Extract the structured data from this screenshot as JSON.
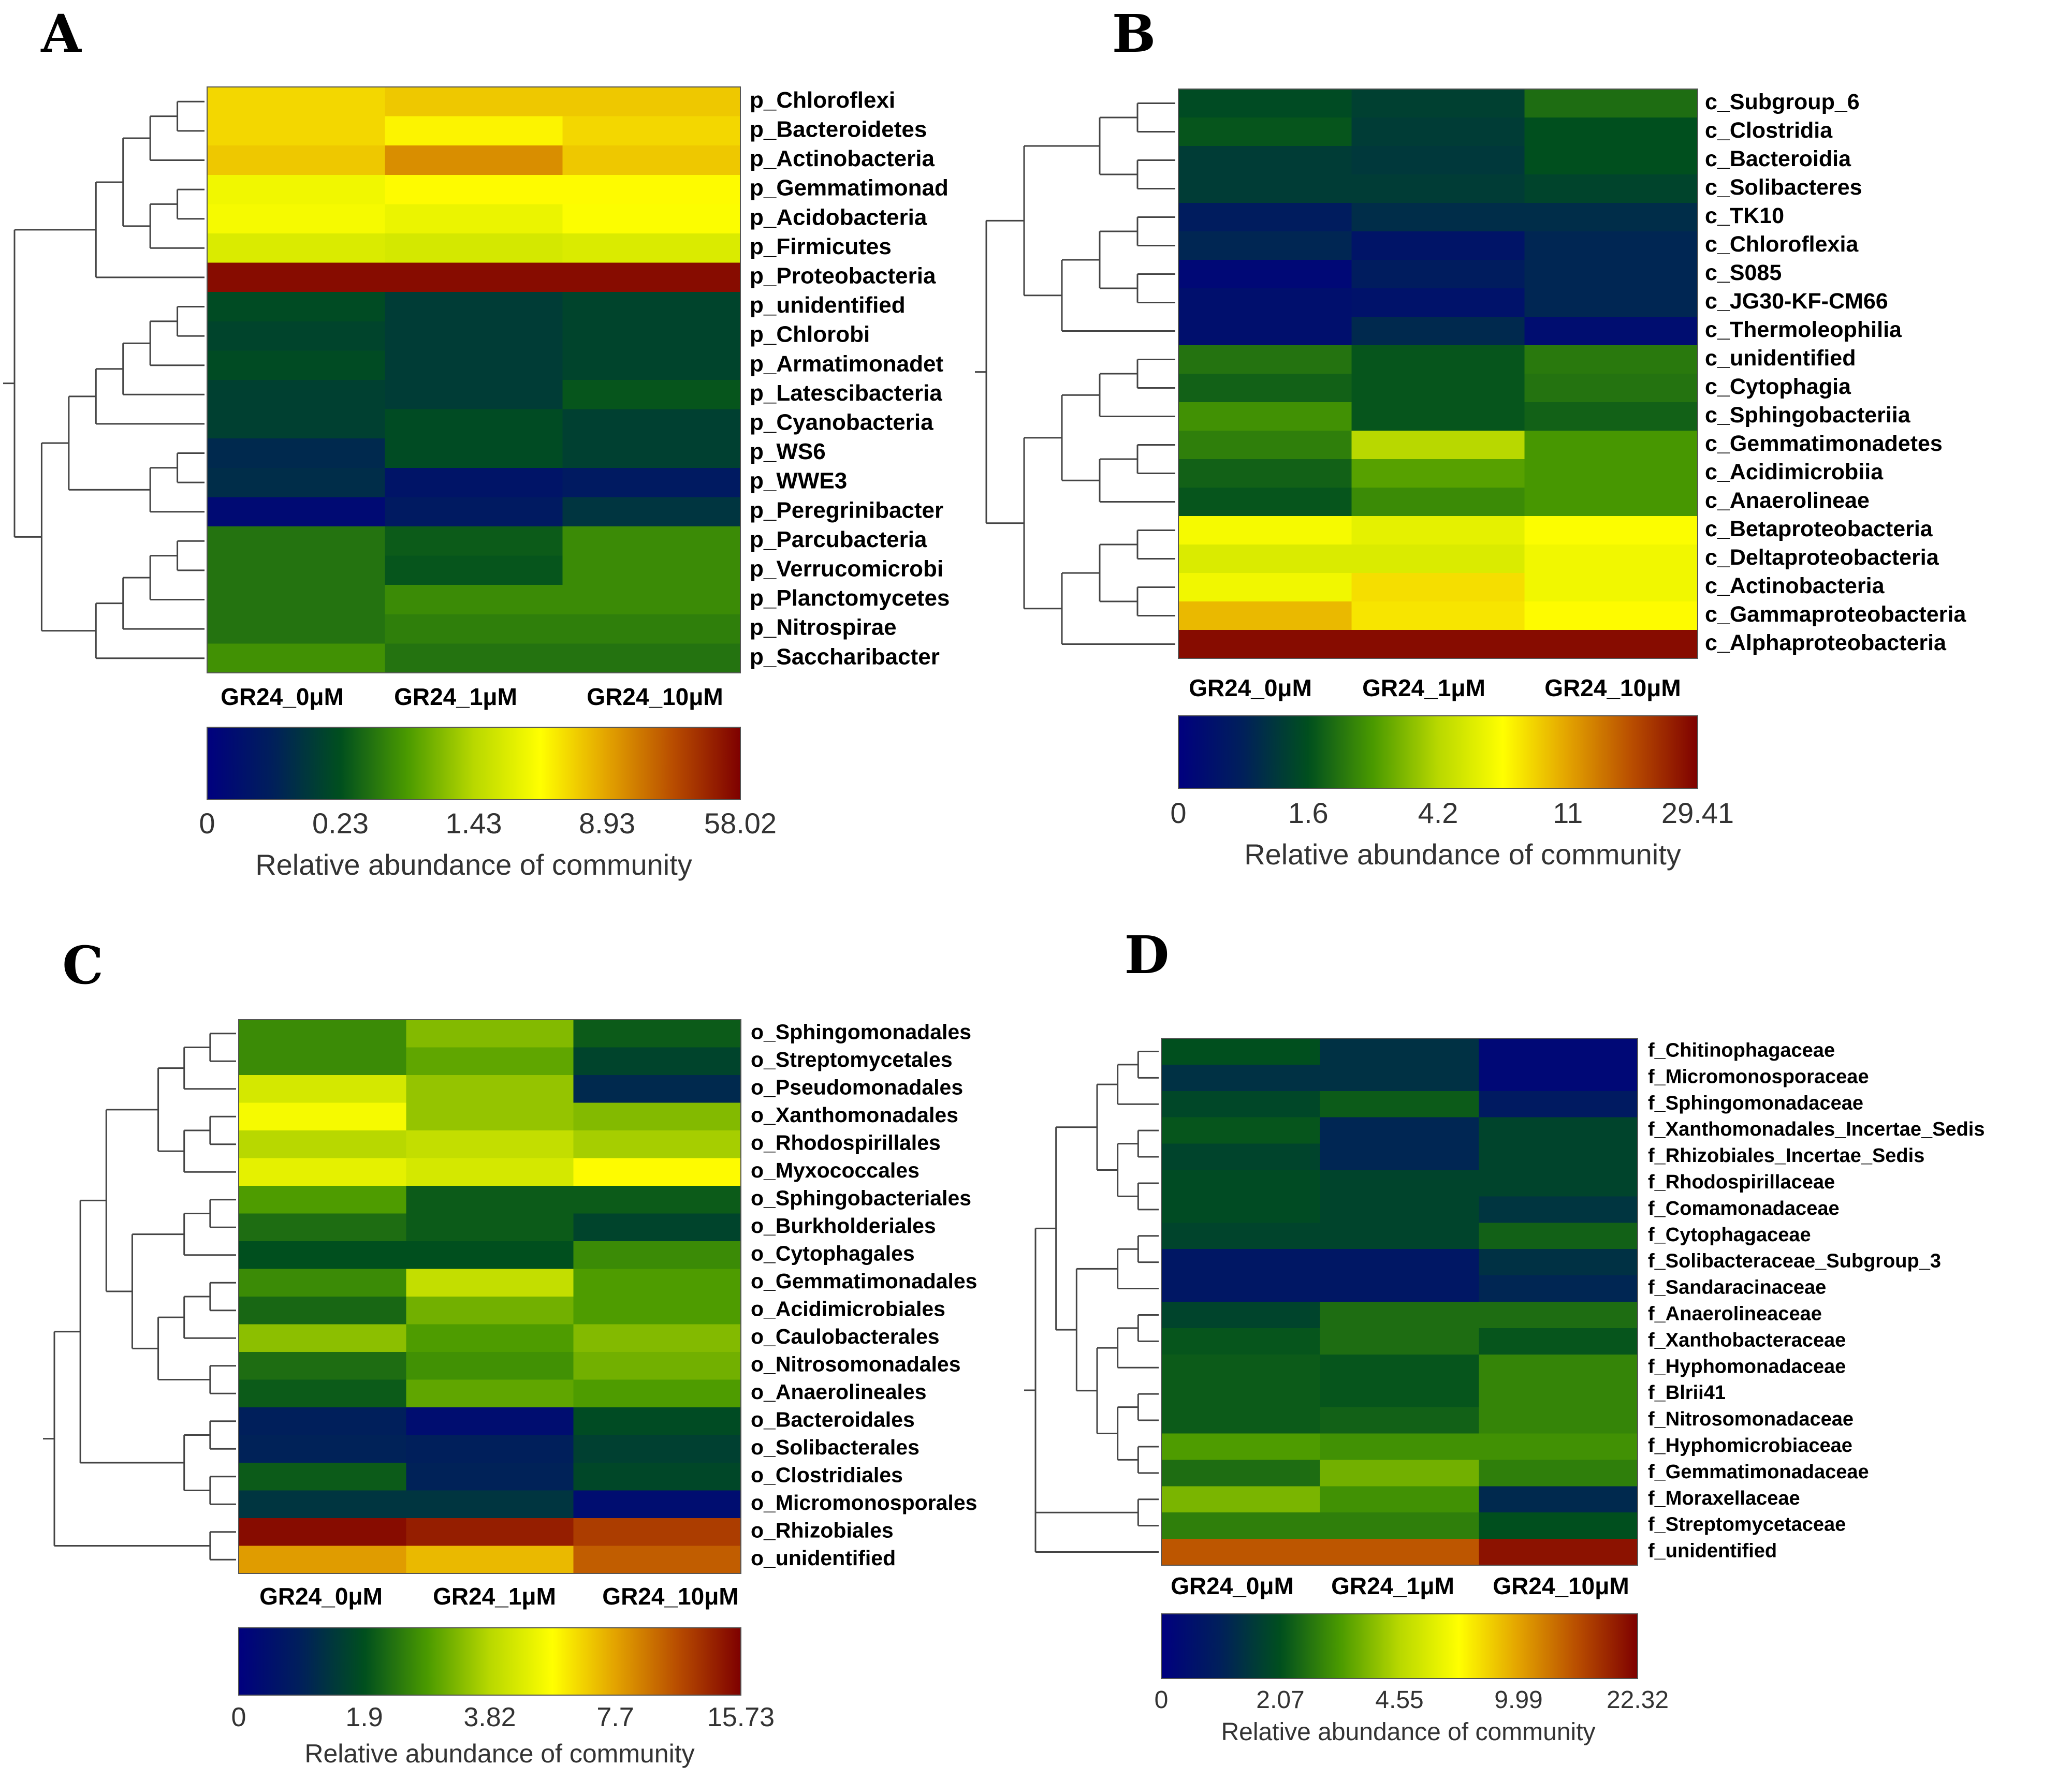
{
  "palette": [
    "#00007f",
    "#00205a",
    "#004f1e",
    "#4a9a00",
    "#b8d800",
    "#ffff00",
    "#e3a300",
    "#b84c00",
    "#7e0000"
  ],
  "chart_data": [
    {
      "type": "heatmap",
      "panel": "A",
      "columns": [
        "GR24_0μM",
        "GR24_1μM",
        "GR24_10μM"
      ],
      "rows": [
        "p_Chloroflexi",
        "p_Bacteroidetes",
        "p_Actinobacteria",
        "p_Gemmatimonad",
        "p_Acidobacteria",
        "p_Firmicutes",
        "p_Proteobacteria",
        "p_unidentified",
        "p_Chlorobi",
        "p_Armatimonadet",
        "p_Latescibacteria",
        "p_Cyanobacteria",
        "p_WS6",
        "p_WWE3",
        "p_Peregrinibacter",
        "p_Parcubacteria",
        "p_Verrucomicrobi",
        "p_Planctomycetes",
        "p_Nitrospirae",
        "p_Saccharibacter"
      ],
      "values": [
        [
          0.68,
          0.7,
          0.7
        ],
        [
          0.68,
          0.64,
          0.68
        ],
        [
          0.7,
          0.78,
          0.7
        ],
        [
          0.6,
          0.63,
          0.63
        ],
        [
          0.61,
          0.59,
          0.62
        ],
        [
          0.56,
          0.55,
          0.56
        ],
        [
          0.98,
          0.98,
          0.98
        ],
        [
          0.24,
          0.2,
          0.22
        ],
        [
          0.22,
          0.2,
          0.22
        ],
        [
          0.24,
          0.2,
          0.22
        ],
        [
          0.21,
          0.2,
          0.26
        ],
        [
          0.21,
          0.24,
          0.21
        ],
        [
          0.15,
          0.24,
          0.21
        ],
        [
          0.16,
          0.08,
          0.1
        ],
        [
          0.04,
          0.1,
          0.18
        ],
        [
          0.31,
          0.27,
          0.35
        ],
        [
          0.31,
          0.26,
          0.35
        ],
        [
          0.31,
          0.35,
          0.35
        ],
        [
          0.31,
          0.33,
          0.33
        ],
        [
          0.36,
          0.31,
          0.31
        ]
      ],
      "colorbar": {
        "ticks": [
          "0",
          "0.23",
          "1.43",
          "8.93",
          "58.02"
        ],
        "title": "Relative abundance of community"
      }
    },
    {
      "type": "heatmap",
      "panel": "B",
      "columns": [
        "GR24_0μM",
        "GR24_1μM",
        "GR24_10μM"
      ],
      "rows": [
        "c_Subgroup_6",
        "c_Clostridia",
        "c_Bacteroidia",
        "c_Solibacteres",
        "c_TK10",
        "c_Chloroflexia",
        "c_S085",
        "c_JG30-KF-CM66",
        "c_Thermoleophilia",
        "c_unidentified",
        "c_Cytophagia",
        "c_Sphingobacteriia",
        "c_Gemmatimonadetes",
        "c_Acidimicrobiia",
        "c_Anaerolineae",
        "c_Betaproteobacteria",
        "c_Deltaproteobacteria",
        "c_Actinobacteria",
        "c_Gammaproteobacteria",
        "c_Alphaproteobacteria"
      ],
      "values": [
        [
          0.24,
          0.21,
          0.3
        ],
        [
          0.26,
          0.2,
          0.25
        ],
        [
          0.2,
          0.19,
          0.25
        ],
        [
          0.2,
          0.2,
          0.22
        ],
        [
          0.11,
          0.16,
          0.16
        ],
        [
          0.14,
          0.08,
          0.14
        ],
        [
          0.03,
          0.11,
          0.14
        ],
        [
          0.06,
          0.07,
          0.14
        ],
        [
          0.06,
          0.15,
          0.05
        ],
        [
          0.31,
          0.26,
          0.32
        ],
        [
          0.28,
          0.26,
          0.31
        ],
        [
          0.36,
          0.26,
          0.28
        ],
        [
          0.33,
          0.5,
          0.37
        ],
        [
          0.28,
          0.39,
          0.37
        ],
        [
          0.26,
          0.35,
          0.37
        ],
        [
          0.61,
          0.58,
          0.62
        ],
        [
          0.56,
          0.56,
          0.6
        ],
        [
          0.6,
          0.67,
          0.6
        ],
        [
          0.72,
          0.66,
          0.63
        ],
        [
          0.98,
          0.98,
          0.98
        ]
      ],
      "colorbar": {
        "ticks": [
          "0",
          "1.6",
          "4.2",
          "11",
          "29.41"
        ],
        "title": "Relative abundance of community"
      }
    },
    {
      "type": "heatmap",
      "panel": "C",
      "columns": [
        "GR24_0μM",
        "GR24_1μM",
        "GR24_10μM"
      ],
      "rows": [
        "o_Sphingomonadales",
        "o_Streptomycetales",
        "o_Pseudomonadales",
        "o_Xanthomonadales",
        "o_Rhodospirillales",
        "o_Myxococcales",
        "o_Sphingobacteriales",
        "o_Burkholderiales",
        "o_Cytophagales",
        "o_Gemmatimonadales",
        "o_Acidimicrobiales",
        "o_Caulobacterales",
        "o_Nitrosomonadales",
        "o_Anaerolineales",
        "o_Bacteroidales",
        "o_Solibacterales",
        "o_Clostridiales",
        "o_Micromonosporales",
        "o_Rhizobiales",
        "o_unidentified"
      ],
      "values": [
        [
          0.35,
          0.44,
          0.27
        ],
        [
          0.35,
          0.4,
          0.22
        ],
        [
          0.55,
          0.46,
          0.15
        ],
        [
          0.61,
          0.46,
          0.44
        ],
        [
          0.5,
          0.52,
          0.48
        ],
        [
          0.58,
          0.55,
          0.63
        ],
        [
          0.38,
          0.27,
          0.27
        ],
        [
          0.3,
          0.27,
          0.22
        ],
        [
          0.25,
          0.25,
          0.35
        ],
        [
          0.35,
          0.52,
          0.38
        ],
        [
          0.29,
          0.42,
          0.38
        ],
        [
          0.45,
          0.38,
          0.44
        ],
        [
          0.3,
          0.36,
          0.42
        ],
        [
          0.27,
          0.4,
          0.38
        ],
        [
          0.12,
          0.05,
          0.24
        ],
        [
          0.13,
          0.12,
          0.21
        ],
        [
          0.27,
          0.13,
          0.23
        ],
        [
          0.18,
          0.18,
          0.05
        ],
        [
          0.98,
          0.95,
          0.9
        ],
        [
          0.76,
          0.72,
          0.85
        ]
      ],
      "colorbar": {
        "ticks": [
          "0",
          "1.9",
          "3.82",
          "7.7",
          "15.73"
        ],
        "title": "Relative abundance of community"
      }
    },
    {
      "type": "heatmap",
      "panel": "D",
      "columns": [
        "GR24_0μM",
        "GR24_1μM",
        "GR24_10μM"
      ],
      "rows": [
        "f_Chitinophagaceae",
        "f_Micromonosporaceae",
        "f_Sphingomonadaceae",
        "f_Xanthomonadales_Incertae_Sedis",
        "f_Rhizobiales_Incertae_Sedis",
        "f_Rhodospirillaceae",
        "f_Comamonadaceae",
        "f_Cytophagaceae",
        "f_Solibacteraceae_Subgroup_3",
        "f_Sandaracinaceae",
        "f_Anaerolineaceae",
        "f_Xanthobacteraceae",
        "f_Hyphomonadaceae",
        "f_Blrii41",
        "f_Nitrosomonadaceae",
        "f_Hyphomicrobiaceae",
        "f_Gemmatimonadaceae",
        "f_Moraxellaceae",
        "f_Streptomycetaceae",
        "f_unidentified"
      ],
      "values": [
        [
          0.25,
          0.17,
          0.03
        ],
        [
          0.17,
          0.17,
          0.03
        ],
        [
          0.23,
          0.27,
          0.1
        ],
        [
          0.26,
          0.14,
          0.22
        ],
        [
          0.22,
          0.14,
          0.22
        ],
        [
          0.24,
          0.22,
          0.22
        ],
        [
          0.24,
          0.22,
          0.18
        ],
        [
          0.22,
          0.22,
          0.28
        ],
        [
          0.09,
          0.09,
          0.17
        ],
        [
          0.09,
          0.09,
          0.14
        ],
        [
          0.22,
          0.3,
          0.3
        ],
        [
          0.26,
          0.3,
          0.26
        ],
        [
          0.27,
          0.26,
          0.34
        ],
        [
          0.27,
          0.26,
          0.34
        ],
        [
          0.27,
          0.28,
          0.34
        ],
        [
          0.38,
          0.36,
          0.36
        ],
        [
          0.3,
          0.42,
          0.33
        ],
        [
          0.43,
          0.36,
          0.15
        ],
        [
          0.33,
          0.33,
          0.25
        ],
        [
          0.86,
          0.86,
          0.97
        ]
      ],
      "colorbar": {
        "ticks": [
          "0",
          "2.07",
          "4.55",
          "9.99",
          "22.32"
        ],
        "title": "Relative abundance of community"
      }
    }
  ]
}
